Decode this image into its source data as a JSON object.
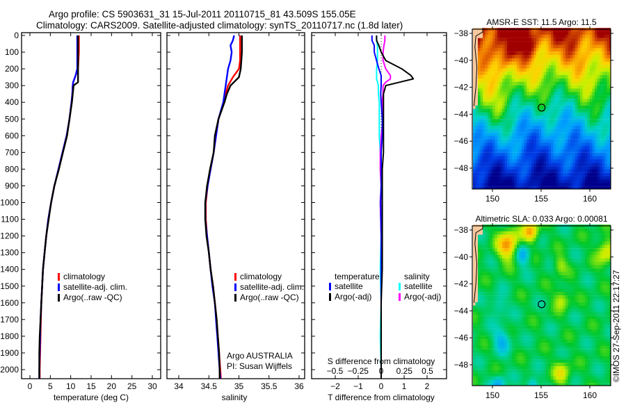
{
  "title_line1": "Argo profile: CS 5903631_31 15-Jul-2011 20110715_81 43.509S 155.05E",
  "title_line2": "Climatology: CARS2009. Satellite-adjusted climatology: synTS_20110717.nc (1.8d later)",
  "credit": "©IMOS 27-Sep-2011 22:17:27",
  "colors": {
    "climatology": "#ff0000",
    "satellite": "#0000ff",
    "argo": "#000000",
    "s_satellite": "#00ffff",
    "s_argo": "#ff00ff",
    "land": "#f7c89c"
  },
  "chart_data": [
    {
      "type": "line",
      "name": "temperature",
      "xlabel": "temperature (deg C)",
      "ylabel": "",
      "xlim": [
        -2,
        31
      ],
      "ylim": [
        2054,
        0
      ],
      "xticks": [
        0,
        5,
        10,
        15,
        20,
        25,
        30
      ],
      "yticks": [
        0,
        100,
        200,
        300,
        400,
        500,
        600,
        700,
        800,
        900,
        1000,
        1100,
        1200,
        1300,
        1400,
        1500,
        1600,
        1700,
        1800,
        1900,
        2000
      ],
      "legend": [
        "climatology",
        "satellite-adj. clim.",
        "Argo(..raw -QC)"
      ],
      "depth": [
        0,
        50,
        100,
        150,
        200,
        240,
        280,
        300,
        350,
        400,
        500,
        600,
        700,
        800,
        900,
        1000,
        1100,
        1200,
        1300,
        1400,
        1500,
        1600,
        1700,
        1800,
        1900,
        2000,
        2054
      ],
      "series": [
        {
          "name": "climatology",
          "values": [
            12.0,
            12.0,
            12.0,
            11.9,
            11.8,
            11.2,
            10.6,
            10.5,
            10.4,
            10.2,
            9.7,
            9.0,
            8.0,
            7.0,
            6.0,
            5.2,
            4.5,
            4.0,
            3.6,
            3.2,
            3.0,
            2.8,
            2.7,
            2.6,
            2.5,
            2.4,
            2.4
          ]
        },
        {
          "name": "satellite-adj. clim.",
          "values": [
            11.6,
            11.6,
            11.6,
            11.6,
            11.6,
            11.2,
            10.6,
            10.5,
            10.4,
            10.2,
            9.7,
            9.0,
            8.0,
            7.0,
            6.0,
            5.2,
            4.5,
            4.0,
            3.6,
            3.2,
            3.0,
            2.8,
            2.6,
            2.5,
            2.4,
            2.3,
            2.3
          ]
        },
        {
          "name": "Argo(..raw -QC)",
          "values": [
            11.8,
            11.8,
            11.8,
            11.8,
            11.8,
            11.8,
            11.8,
            10.7,
            10.5,
            10.3,
            9.7,
            9.1,
            8.1,
            7.1,
            6.0,
            5.2,
            4.6,
            4.0,
            3.6,
            3.2,
            3.0,
            2.8,
            2.6,
            2.4,
            2.3,
            2.3,
            2.3
          ]
        }
      ]
    },
    {
      "type": "line",
      "name": "salinity",
      "xlabel": "salinity",
      "xlim": [
        33.8,
        36.1
      ],
      "ylim": [
        2054,
        0
      ],
      "xticks": [
        34,
        34.5,
        35,
        35.5,
        36
      ],
      "legend": [
        "climatology",
        "satellite-adj. clim.",
        "Argo(..raw -QC)"
      ],
      "annotation": [
        "Argo AUSTRALIA",
        "PI: Susan Wijffels"
      ],
      "depth": [
        0,
        30,
        60,
        100,
        150,
        200,
        250,
        300,
        350,
        400,
        500,
        600,
        700,
        800,
        900,
        1000,
        1100,
        1200,
        1300,
        1400,
        1500,
        1600,
        1700,
        1800,
        1900,
        2000,
        2054
      ],
      "series": [
        {
          "name": "climatology",
          "values": [
            35.02,
            35.02,
            35.02,
            35.02,
            35.02,
            35.0,
            34.9,
            34.82,
            34.78,
            34.75,
            34.66,
            34.62,
            34.58,
            34.53,
            34.48,
            34.45,
            34.45,
            34.47,
            34.5,
            34.53,
            34.57,
            34.6,
            34.63,
            34.65,
            34.67,
            34.69,
            34.7
          ]
        },
        {
          "name": "satellite-adj. clim.",
          "values": [
            34.92,
            34.9,
            34.86,
            34.88,
            34.86,
            34.82,
            34.8,
            34.78,
            34.76,
            34.74,
            34.66,
            34.62,
            34.58,
            34.53,
            34.48,
            34.44,
            34.44,
            34.47,
            34.5,
            34.53,
            34.56,
            34.6,
            34.62,
            34.64,
            34.66,
            34.68,
            34.69
          ]
        },
        {
          "name": "Argo(..raw -QC)",
          "values": [
            35.05,
            35.05,
            35.05,
            35.05,
            35.04,
            35.03,
            35.0,
            34.86,
            34.8,
            34.76,
            34.66,
            34.6,
            34.58,
            34.52,
            34.47,
            34.44,
            34.44,
            34.46,
            34.5,
            34.53,
            34.57,
            34.6,
            34.63,
            34.65,
            34.67,
            34.68,
            34.68
          ]
        }
      ]
    },
    {
      "type": "line",
      "name": "differences",
      "xlabel": "T difference from climatology",
      "xlabel_top": "S difference from climatology",
      "xlim": [
        -3,
        3
      ],
      "ylim": [
        2054,
        0
      ],
      "xticks": [
        -2,
        -1,
        0,
        1,
        2
      ],
      "xticks_top": [
        -0.5,
        -0.25,
        0,
        0.25,
        0.5
      ],
      "legend_t_title": "temperature",
      "legend_s_title": "salinity",
      "legend": [
        "satellite",
        "Argo(-adj)",
        "satellite",
        "Argo(-adj)"
      ],
      "depth": [
        0,
        30,
        60,
        100,
        150,
        200,
        240,
        260,
        280,
        300,
        350,
        400,
        500,
        600,
        700,
        800,
        900,
        1000,
        1200,
        1400,
        1600,
        1800,
        2000,
        2054
      ],
      "series": [
        {
          "name": "T satellite",
          "axis": "T",
          "values": [
            -0.4,
            -0.4,
            -0.3,
            -0.3,
            -0.2,
            -0.1,
            0,
            0,
            0,
            0,
            -0.02,
            0,
            0.05,
            0.05,
            0.0,
            0.0,
            0.0,
            -0.02,
            0.0,
            0.0,
            0.0,
            0.0,
            0.0,
            0.0
          ]
        },
        {
          "name": "T Argo(-adj)",
          "axis": "T",
          "values": [
            -0.2,
            -0.2,
            -0.1,
            0.0,
            0.2,
            0.9,
            1.3,
            1.4,
            0.8,
            0.2,
            0.1,
            0.1,
            0.1,
            0.1,
            0.1,
            0.05,
            0.05,
            0.05,
            0.05,
            0.05,
            0.0,
            0.0,
            0.0,
            0.0
          ]
        },
        {
          "name": "S satellite",
          "axis": "S",
          "values": [
            -0.05,
            -0.05,
            -0.04,
            -0.04,
            -0.04,
            -0.05,
            -0.05,
            -0.05,
            -0.04,
            -0.03,
            -0.03,
            -0.02,
            -0.02,
            -0.02,
            -0.01,
            0.0,
            0.0,
            -0.01,
            0.0,
            -0.01,
            0.0,
            -0.01,
            0.0,
            0.0
          ]
        },
        {
          "name": "S Argo(-adj)",
          "axis": "S",
          "values": [
            0.04,
            0.04,
            0.03,
            0.02,
            0.02,
            0.05,
            0.1,
            0.1,
            0.05,
            0.02,
            0.02,
            0.01,
            0.02,
            0.0,
            -0.01,
            -0.01,
            0.0,
            -0.01,
            0.0,
            0.0,
            0.0,
            0.0,
            0.0,
            0.0
          ]
        }
      ]
    },
    {
      "type": "heatmap",
      "name": "sst-map",
      "title": "AMSR-E SST: 11.5 Argo: 11.5",
      "xticks": [
        150,
        155,
        160
      ],
      "yticks": [
        -38,
        -40,
        -42,
        -44,
        -46,
        -48
      ],
      "xlim": [
        148,
        162.2
      ],
      "ylim": [
        -49.5,
        -37.6
      ],
      "marker": {
        "lon": 155.05,
        "lat": -43.509
      }
    },
    {
      "type": "heatmap",
      "name": "sla-map",
      "title": "Altimetric SLA: 0.033 Argo: 0.00081",
      "xticks": [
        150,
        155,
        160
      ],
      "yticks": [
        -38,
        -40,
        -42,
        -44,
        -46,
        -48
      ],
      "xlim": [
        148,
        162.2
      ],
      "ylim": [
        -49.5,
        -37.6
      ],
      "marker": {
        "lon": 155.05,
        "lat": -43.509
      }
    }
  ]
}
